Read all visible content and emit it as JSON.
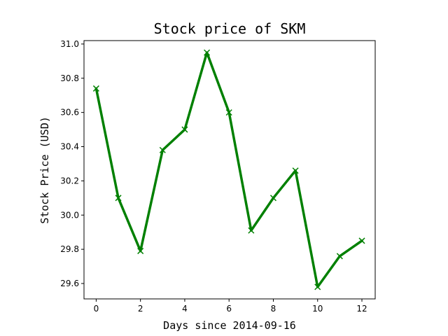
{
  "chart_data": {
    "type": "line",
    "title": "Stock price of SKM",
    "xlabel": "Days since 2014-09-16",
    "ylabel": "Stock Price (USD)",
    "x": [
      0,
      1,
      2,
      3,
      4,
      5,
      6,
      7,
      8,
      9,
      10,
      11,
      12
    ],
    "series": [
      {
        "values": [
          30.74,
          30.1,
          29.79,
          30.38,
          30.5,
          30.95,
          30.6,
          29.91,
          30.1,
          30.26,
          29.58,
          29.76,
          29.85
        ],
        "color": "#008000",
        "marker": "x"
      }
    ],
    "xlim": [
      -0.55,
      12.6
    ],
    "ylim": [
      29.51,
      31.02
    ],
    "xticks": [
      0,
      2,
      4,
      6,
      8,
      10,
      12
    ],
    "yticks": [
      29.6,
      29.8,
      30.0,
      30.2,
      30.4,
      30.6,
      30.8,
      31.0
    ],
    "ytick_labels": [
      "29.6",
      "29.8",
      "30.0",
      "30.2",
      "30.4",
      "30.6",
      "30.8",
      "31.0"
    ],
    "grid": false,
    "legend": "none"
  }
}
